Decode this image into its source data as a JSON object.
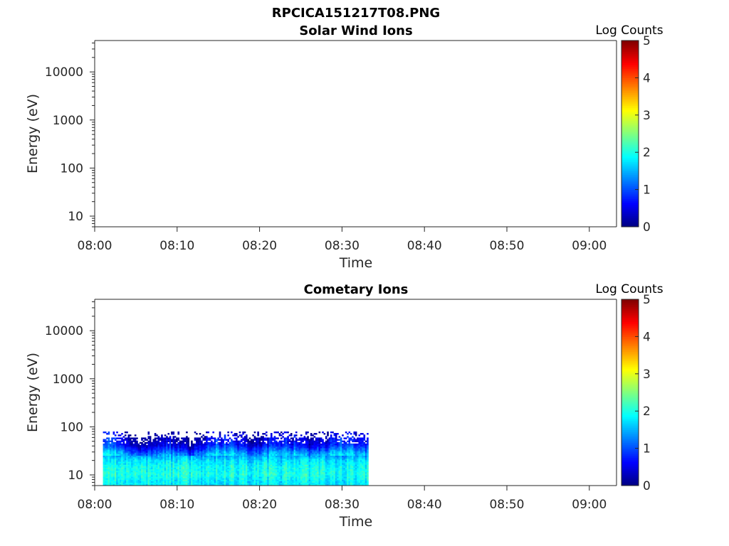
{
  "figure": {
    "title": "RPCICA151217T08.PNG"
  },
  "chart_data": [
    {
      "type": "heatmap",
      "title": "Solar Wind Ions",
      "xlabel": "Time",
      "ylabel": "Energy (eV)",
      "x_tick_labels": [
        "08:00",
        "08:10",
        "08:20",
        "08:30",
        "08:40",
        "08:50",
        "09:00"
      ],
      "x_tick_minutes": [
        0,
        10,
        20,
        30,
        40,
        50,
        60
      ],
      "xlim_minutes": [
        0,
        63.3
      ],
      "y_scale": "log",
      "ylim": [
        6,
        45000
      ],
      "y_tick_labels": [
        "10",
        "100",
        "1000",
        "10000"
      ],
      "y_tick_values": [
        10,
        100,
        1000,
        10000
      ],
      "colorbar": {
        "label": "Log Counts",
        "range": [
          0,
          5
        ],
        "ticks": [
          "0",
          "1",
          "2",
          "3",
          "4",
          "5"
        ],
        "colormap": "jet"
      },
      "data_description": "",
      "data": []
    },
    {
      "type": "heatmap",
      "title": "Cometary Ions",
      "xlabel": "Time",
      "ylabel": "Energy (eV)",
      "x_tick_labels": [
        "08:00",
        "08:10",
        "08:20",
        "08:30",
        "08:40",
        "08:50",
        "09:00"
      ],
      "x_tick_minutes": [
        0,
        10,
        20,
        30,
        40,
        50,
        60
      ],
      "xlim_minutes": [
        0,
        63.3
      ],
      "y_scale": "log",
      "ylim": [
        6,
        45000
      ],
      "y_tick_labels": [
        "10",
        "100",
        "1000",
        "10000"
      ],
      "y_tick_values": [
        10,
        100,
        1000,
        10000
      ],
      "colorbar": {
        "label": "Log Counts",
        "range": [
          0,
          5
        ],
        "ticks": [
          "0",
          "1",
          "2",
          "3",
          "4",
          "5"
        ],
        "colormap": "jet"
      },
      "data_extent": {
        "time_minutes": [
          1.0,
          33.2
        ],
        "energy_eV": [
          6,
          80
        ]
      },
      "energy_profile": [
        {
          "energy_eV": 7,
          "log_counts": 1.8
        },
        {
          "energy_eV": 10,
          "log_counts": 2.0
        },
        {
          "energy_eV": 15,
          "log_counts": 1.9
        },
        {
          "energy_eV": 20,
          "log_counts": 1.7
        },
        {
          "energy_eV": 28,
          "log_counts": 1.2
        },
        {
          "energy_eV": 40,
          "log_counts": 0.5
        },
        {
          "energy_eV": 60,
          "log_counts": 0.2
        },
        {
          "energy_eV": 80,
          "log_counts": 0.1
        }
      ]
    }
  ]
}
